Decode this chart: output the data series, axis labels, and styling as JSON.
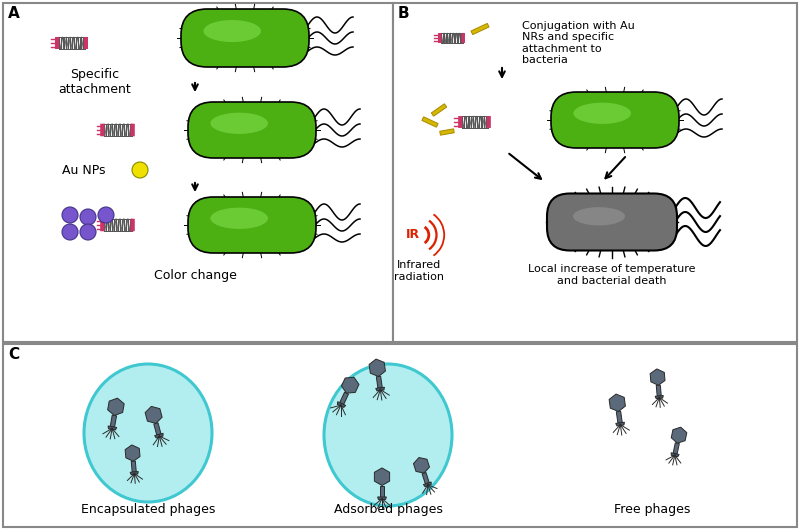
{
  "bg_color": "#ffffff",
  "panel_A_label": "A",
  "panel_B_label": "B",
  "panel_C_label": "C",
  "text_specific_attachment": "Specific\nattachment",
  "text_au_nps": "Au NPs",
  "text_color_change": "Color change",
  "text_conjugation": "Conjugation with Au\nNRs and specific\nattachment to\nbacteria",
  "text_ir": "IR",
  "text_infrared": "Infrared\nradiation",
  "text_local_increase": "Local increase of temperature\nand bacterial death",
  "text_encapsulated": "Encapsulated phages",
  "text_adsorbed": "Adsorbed phages",
  "text_free": "Free phages",
  "bacteria_green": "#4caf12",
  "phage_color": "#5a6a7a",
  "circle_fill": "#b2eef0",
  "circle_edge": "#40c8d0",
  "au_np_color": "#f0e000",
  "purple_np_color": "#7755cc",
  "ir_color": "#dd2200",
  "gold_rod_color": "#d4b800"
}
